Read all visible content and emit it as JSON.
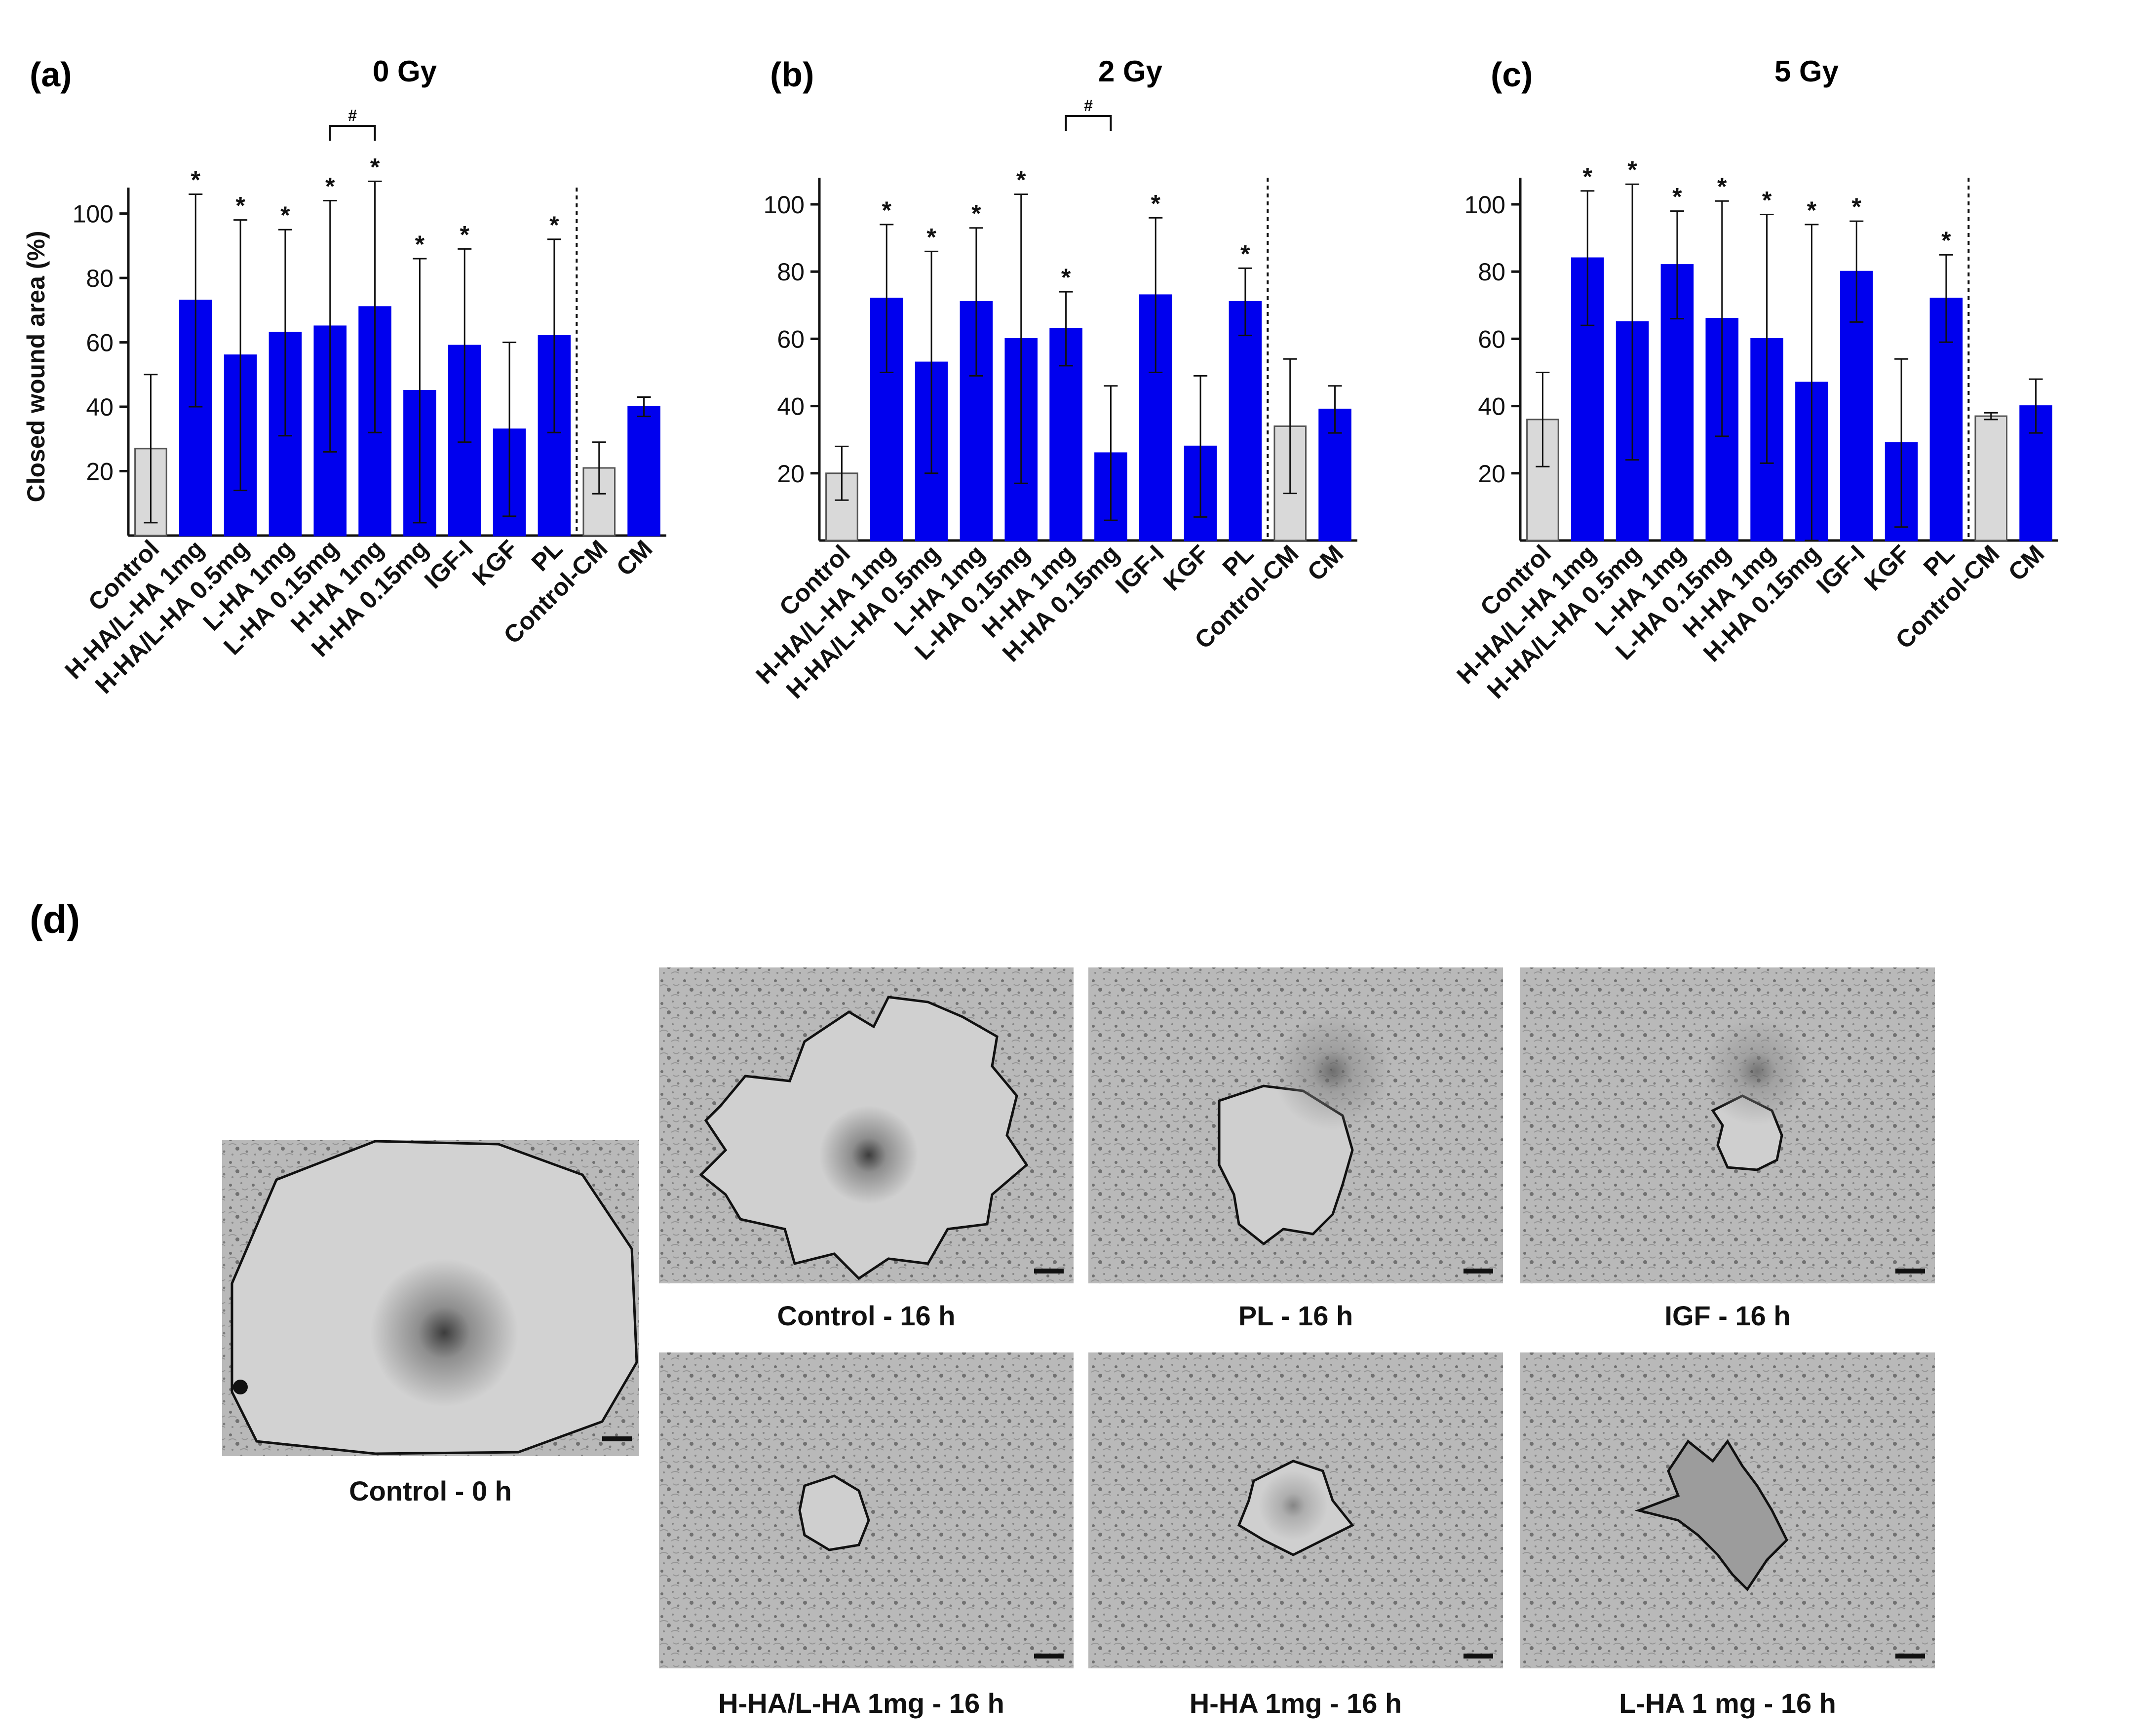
{
  "panel_labels": {
    "a": "(a)",
    "b": "(b)",
    "c": "(c)",
    "d": "(d)"
  },
  "chart_data": [
    {
      "type": "bar",
      "panel": "(a)",
      "title": "0 Gy",
      "xlabel": "",
      "ylabel": "Closed wound area (%)",
      "ylim": [
        0,
        105
      ],
      "yticks": [
        "20",
        "40",
        "60",
        "80",
        "100"
      ],
      "grid": false,
      "categories": [
        "Control",
        "H-HA/L-HA 1mg",
        "H-HA/L-HA 0.5mg",
        "L-HA 1mg",
        "L-HA 0.15mg",
        "H-HA 1mg",
        "H-HA 0.15mg",
        "IGF-I",
        "KGF",
        "PL",
        "Control-CM",
        "CM"
      ],
      "values": [
        27,
        73,
        56,
        63,
        65,
        71,
        45,
        59,
        33,
        62,
        21,
        40
      ],
      "errors": [
        23,
        33,
        42,
        32,
        39,
        39,
        41,
        30,
        27,
        30,
        8,
        3
      ],
      "significance": [
        "",
        "*",
        "*",
        "*",
        "*",
        "*",
        "*",
        "*",
        "",
        "*",
        "",
        ""
      ],
      "bracket": {
        "between": [
          "L-HA 0.15mg",
          "H-HA 1mg"
        ],
        "mark": "#"
      },
      "bar_colors": {
        "control": "#d9d9d9",
        "treatment": "#0000ee"
      }
    },
    {
      "type": "bar",
      "panel": "(b)",
      "title": "2 Gy",
      "xlabel": "",
      "ylabel": "",
      "ylim": [
        0,
        105
      ],
      "yticks": [
        "20",
        "40",
        "60",
        "80",
        "100"
      ],
      "grid": false,
      "categories": [
        "Control",
        "H-HA/L-HA 1mg",
        "H-HA/L-HA 0.5mg",
        "L-HA 1mg",
        "L-HA 0.15mg",
        "H-HA 1mg",
        "H-HA 0.15mg",
        "IGF-I",
        "KGF",
        "PL",
        "Control-CM",
        "CM"
      ],
      "values": [
        20,
        72,
        53,
        71,
        60,
        63,
        26,
        73,
        28,
        71,
        34,
        39
      ],
      "errors": [
        8,
        22,
        33,
        22,
        43,
        11,
        20,
        23,
        21,
        10,
        20,
        7
      ],
      "significance": [
        "",
        "*",
        "*",
        "*",
        "*",
        "*",
        "",
        "*",
        "",
        "*",
        "",
        ""
      ],
      "bracket": {
        "between": [
          "H-HA 1mg",
          "H-HA 0.15mg"
        ],
        "mark": "#"
      },
      "bar_colors": {
        "control": "#d9d9d9",
        "treatment": "#0000ee"
      }
    },
    {
      "type": "bar",
      "panel": "(c)",
      "title": "5 Gy",
      "xlabel": "",
      "ylabel": "",
      "ylim": [
        0,
        105
      ],
      "yticks": [
        "20",
        "40",
        "60",
        "80",
        "100"
      ],
      "grid": false,
      "categories": [
        "Control",
        "H-HA/L-HA 1mg",
        "H-HA/L-HA 0.5mg",
        "L-HA 1mg",
        "L-HA 0.15mg",
        "H-HA 1mg",
        "H-HA 0.15mg",
        "IGF-I",
        "KGF",
        "PL",
        "Control-CM",
        "CM"
      ],
      "values": [
        36,
        84,
        65,
        82,
        66,
        60,
        47,
        80,
        29,
        72,
        37,
        40
      ],
      "errors": [
        14,
        20,
        41,
        16,
        35,
        37,
        47,
        15,
        25,
        13,
        1,
        8
      ],
      "significance": [
        "",
        "*",
        "*",
        "*",
        "*",
        "*",
        "*",
        "*",
        "",
        "*",
        "",
        ""
      ],
      "bracket": null,
      "bar_colors": {
        "control": "#d9d9d9",
        "treatment": "#0000ee"
      }
    }
  ],
  "photos": {
    "captions": {
      "control_0h": "Control - 0 h",
      "control_16h": "Control - 16 h",
      "pl_16h": "PL - 16 h",
      "igf_16h": "IGF - 16 h",
      "hha_lha_16h": "H-HA/L-HA 1mg - 16 h",
      "hha_16h": "H-HA 1mg - 16 h",
      "lha_16h": "L-HA 1 mg - 16 h"
    },
    "wound_closure_relative": {
      "control_0h": 1.0,
      "control_16h": 0.8,
      "pl_16h": 0.45,
      "igf_16h": 0.22,
      "hha_lha_16h": 0.2,
      "hha_16h": 0.3,
      "lha_16h": 0.45
    }
  }
}
